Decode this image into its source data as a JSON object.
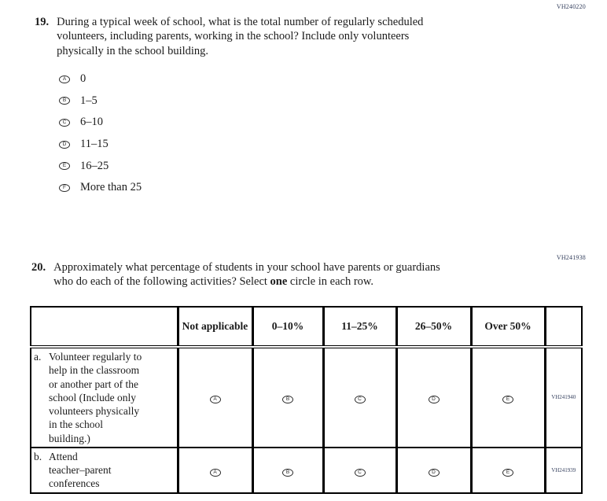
{
  "codes": {
    "q19": "VH240220",
    "q20": "VH241938"
  },
  "q19": {
    "number": "19.",
    "text_lines": [
      "During a typical week of school, what is the total number of regularly scheduled",
      "volunteers, including parents, working in the school? Include only volunteers",
      "physically in the school building."
    ],
    "options": [
      {
        "letter": "A",
        "label": "0"
      },
      {
        "letter": "B",
        "label": "1–5"
      },
      {
        "letter": "C",
        "label": "6–10"
      },
      {
        "letter": "D",
        "label": "11–15"
      },
      {
        "letter": "E",
        "label": "16–25"
      },
      {
        "letter": "F",
        "label": "More than 25"
      }
    ]
  },
  "q20": {
    "number": "20.",
    "line1": "Approximately what percentage of students in your school have parents or guardians",
    "line2_pre": "who do each of the following activities? Select ",
    "bold_word": "one",
    "line2_post": " circle in each row.",
    "table": {
      "headers": [
        "Not applicable",
        "0–10%",
        "11–25%",
        "26–50%",
        "Over 50%"
      ],
      "rows": [
        {
          "prefix": "a.",
          "label_lines": [
            "Volunteer regularly to",
            "help in the classroom",
            "or another part of the",
            "school (Include only",
            "volunteers physically",
            "in the school",
            "building.)"
          ],
          "bubbles": [
            "A",
            "B",
            "C",
            "D",
            "E"
          ],
          "code": "VH241940"
        },
        {
          "prefix": "b.",
          "label_lines": [
            "Attend",
            "teacher–parent",
            "conferences"
          ],
          "bubbles": [
            "A",
            "B",
            "C",
            "D",
            "E"
          ],
          "code": "VH241939"
        }
      ]
    }
  }
}
